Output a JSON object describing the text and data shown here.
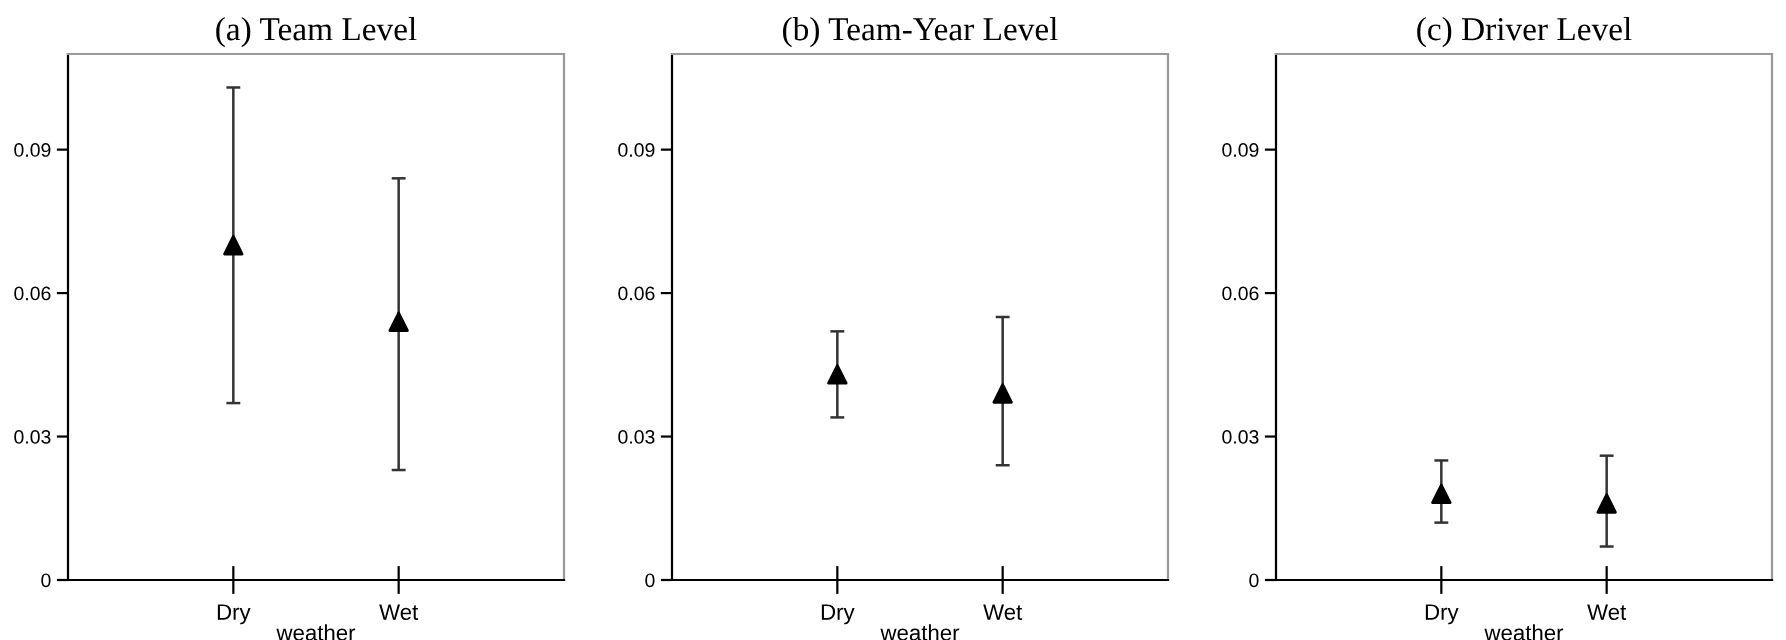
{
  "chart_data": [
    {
      "type": "scatter",
      "title": "(a) Team Level",
      "xlabel": "weather",
      "categories": [
        "Dry",
        "Wet"
      ],
      "values": [
        0.07,
        0.054
      ],
      "errors": [
        [
          0.037,
          0.103
        ],
        [
          0.023,
          0.084
        ]
      ],
      "color": "#000000",
      "marker": "triangle",
      "ylim": [
        0,
        0.11
      ],
      "yticks": [
        0,
        0.03,
        0.06,
        0.09
      ],
      "grid": false
    },
    {
      "type": "scatter",
      "title": "(b) Team-Year Level",
      "xlabel": "weather",
      "categories": [
        "Dry",
        "Wet"
      ],
      "values": [
        0.043,
        0.039
      ],
      "errors": [
        [
          0.034,
          0.052
        ],
        [
          0.024,
          0.055
        ]
      ],
      "color": "#000000",
      "marker": "triangle",
      "ylim": [
        0,
        0.11
      ],
      "yticks": [
        0,
        0.03,
        0.06,
        0.09
      ],
      "grid": false
    },
    {
      "type": "scatter",
      "title": "(c) Driver Level",
      "xlabel": "weather",
      "categories": [
        "Dry",
        "Wet"
      ],
      "values": [
        0.018,
        0.016
      ],
      "errors": [
        [
          0.012,
          0.025
        ],
        [
          0.007,
          0.026
        ]
      ],
      "color": "#000000",
      "marker": "triangle",
      "ylim": [
        0,
        0.11
      ],
      "yticks": [
        0,
        0.03,
        0.06,
        0.09
      ],
      "grid": false
    }
  ]
}
